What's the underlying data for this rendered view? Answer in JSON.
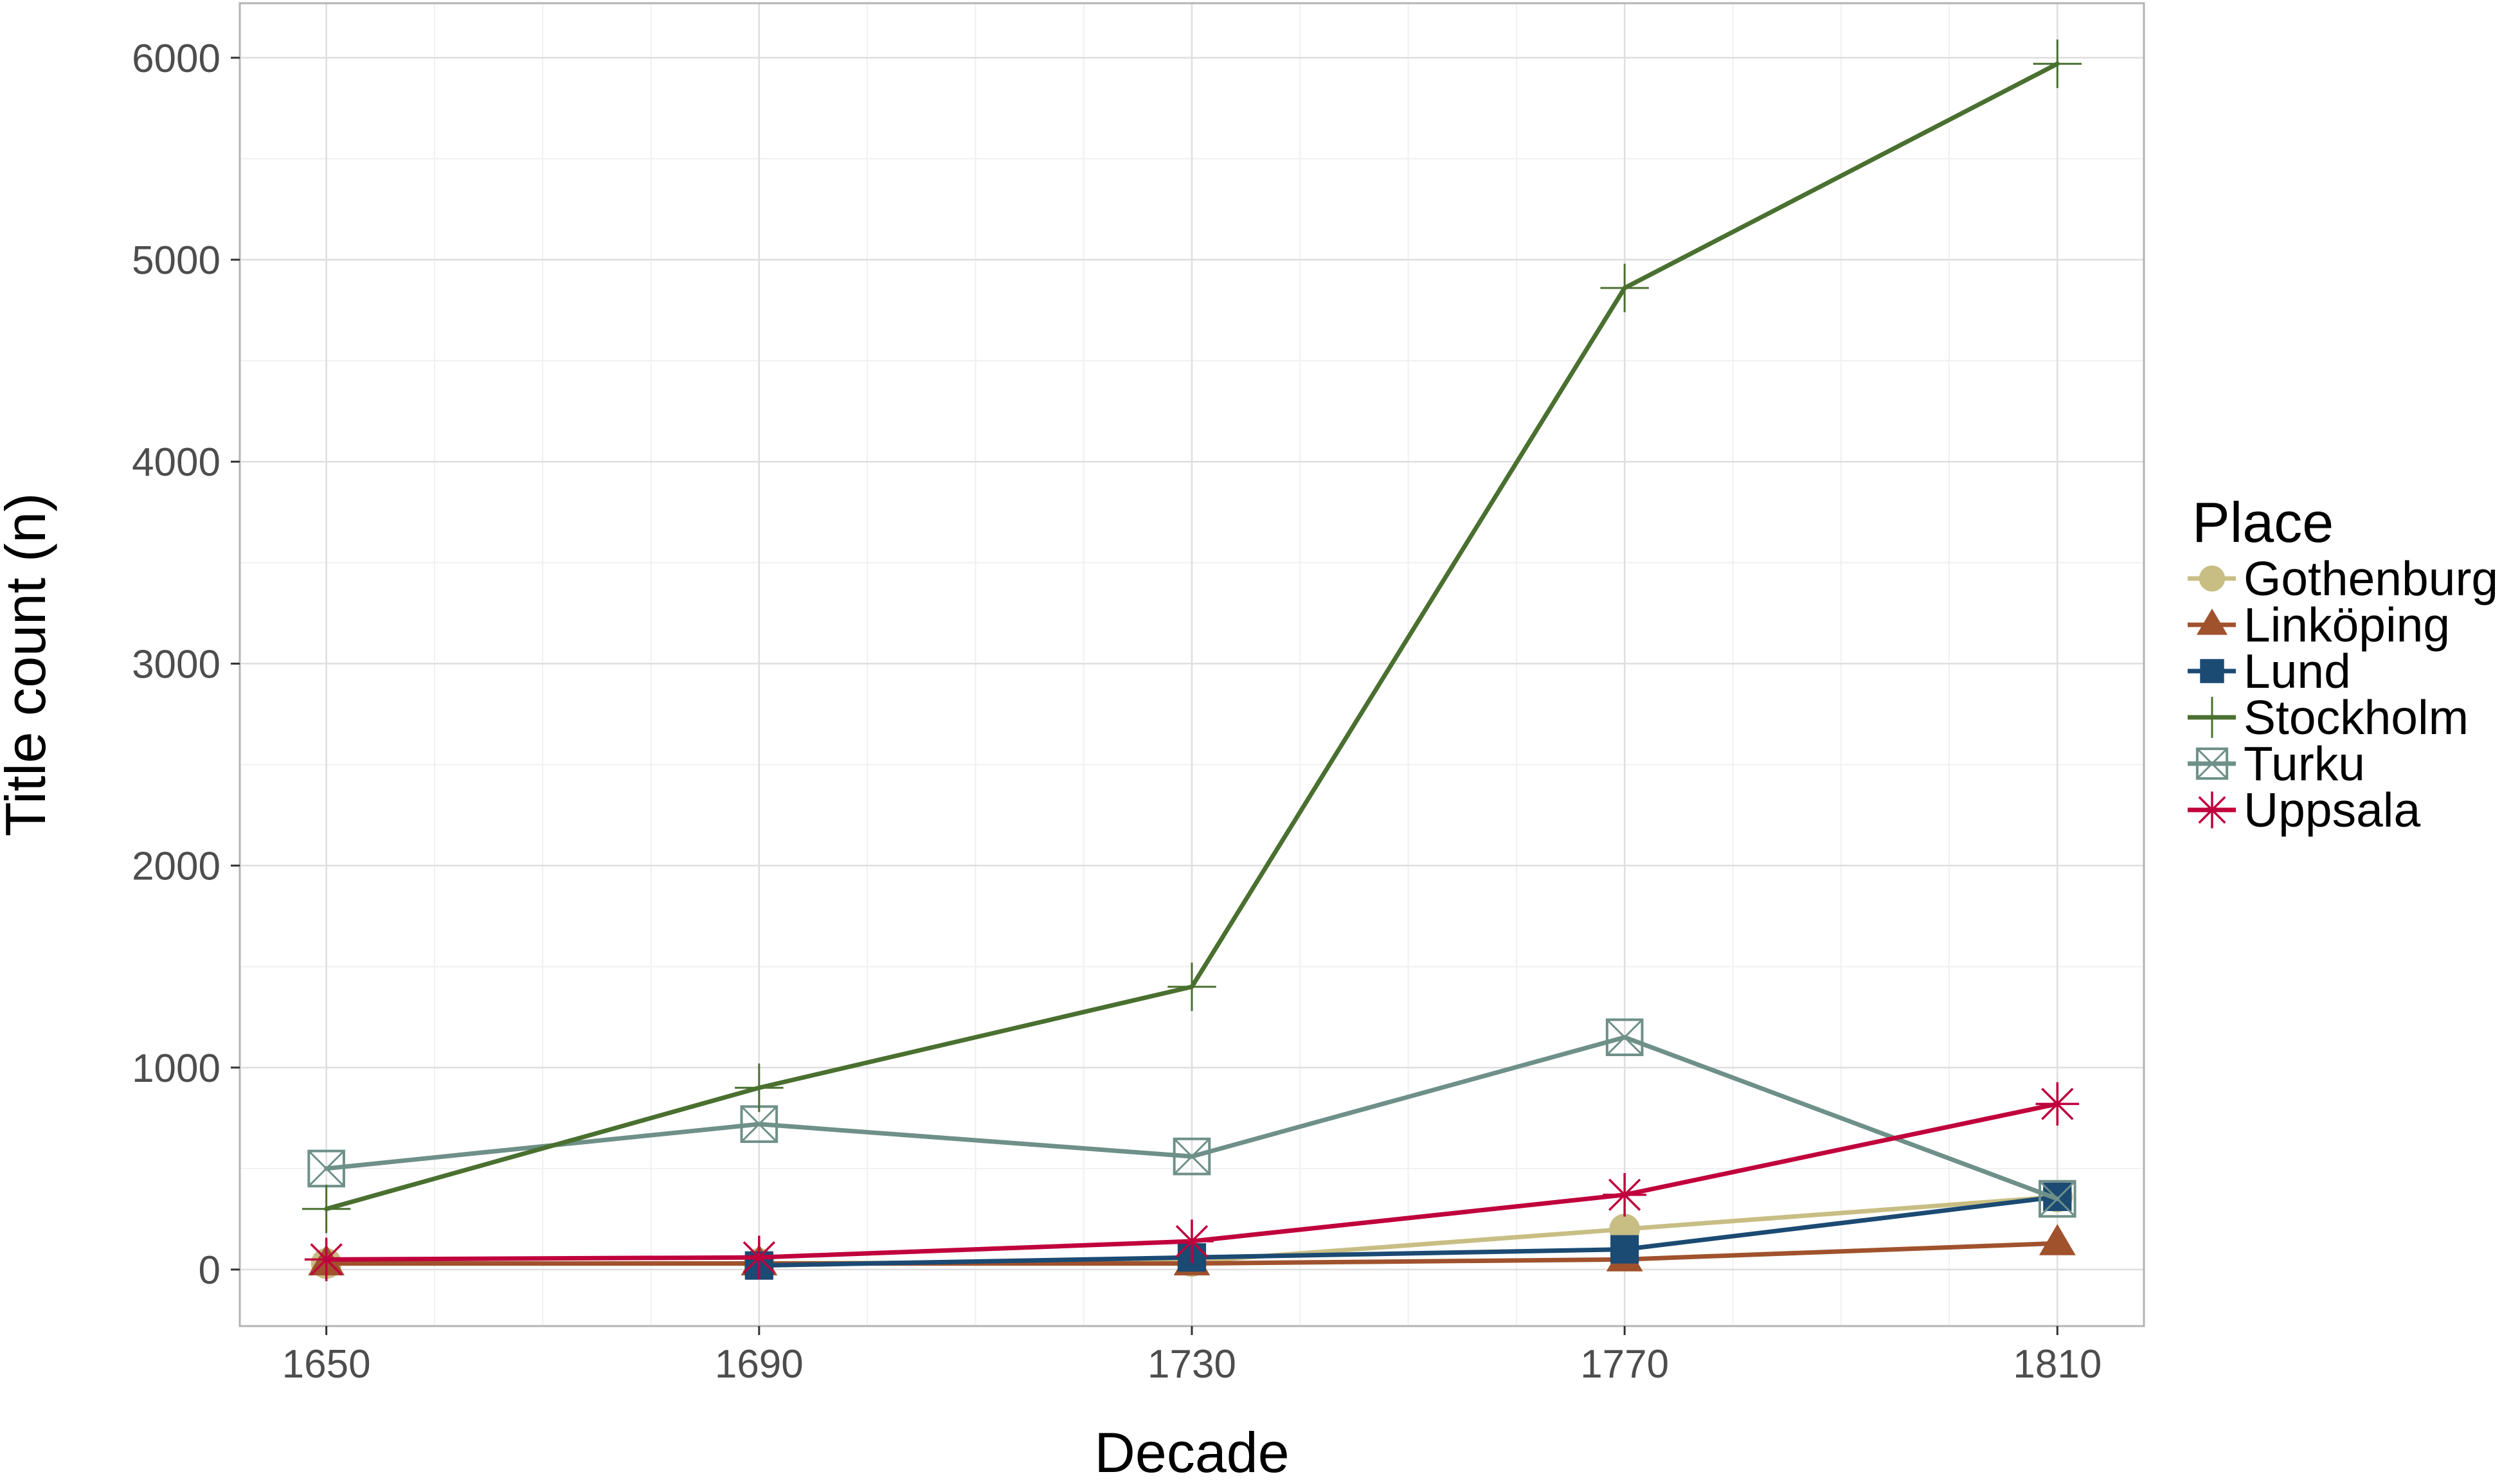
{
  "chart_data": {
    "type": "line",
    "title": "",
    "xlabel": "Decade",
    "ylabel": "Title count (n)",
    "x": [
      1650,
      1690,
      1730,
      1770,
      1810
    ],
    "x_ticks": [
      "1650",
      "1690",
      "1730",
      "1770",
      "1810"
    ],
    "y_ticks": [
      "0",
      "1000",
      "2000",
      "3000",
      "4000",
      "5000",
      "6000"
    ],
    "xlim": [
      1642,
      1818
    ],
    "ylim": [
      -280,
      6270
    ],
    "grid": true,
    "legend": {
      "title": "Place",
      "position": "right"
    },
    "series": [
      {
        "name": "Gothenburg",
        "color": "#c8be84",
        "marker": "circle",
        "values": [
          30,
          30,
          40,
          200,
          360
        ]
      },
      {
        "name": "Linköping",
        "color": "#a0522d",
        "marker": "triangle",
        "values": [
          30,
          30,
          30,
          50,
          130
        ]
      },
      {
        "name": "Lund",
        "color": "#1b4a73",
        "marker": "square",
        "values": [
          null,
          20,
          60,
          100,
          360
        ]
      },
      {
        "name": "Stockholm",
        "color": "#4a7030",
        "marker": "plus",
        "values": [
          300,
          900,
          1400,
          4860,
          5970
        ]
      },
      {
        "name": "Turku",
        "color": "#6e9088",
        "marker": "boxcross",
        "values": [
          500,
          720,
          560,
          1150,
          350
        ]
      },
      {
        "name": "Uppsala",
        "color": "#c0003c",
        "marker": "asterisk",
        "values": [
          50,
          60,
          140,
          370,
          820
        ]
      }
    ]
  }
}
